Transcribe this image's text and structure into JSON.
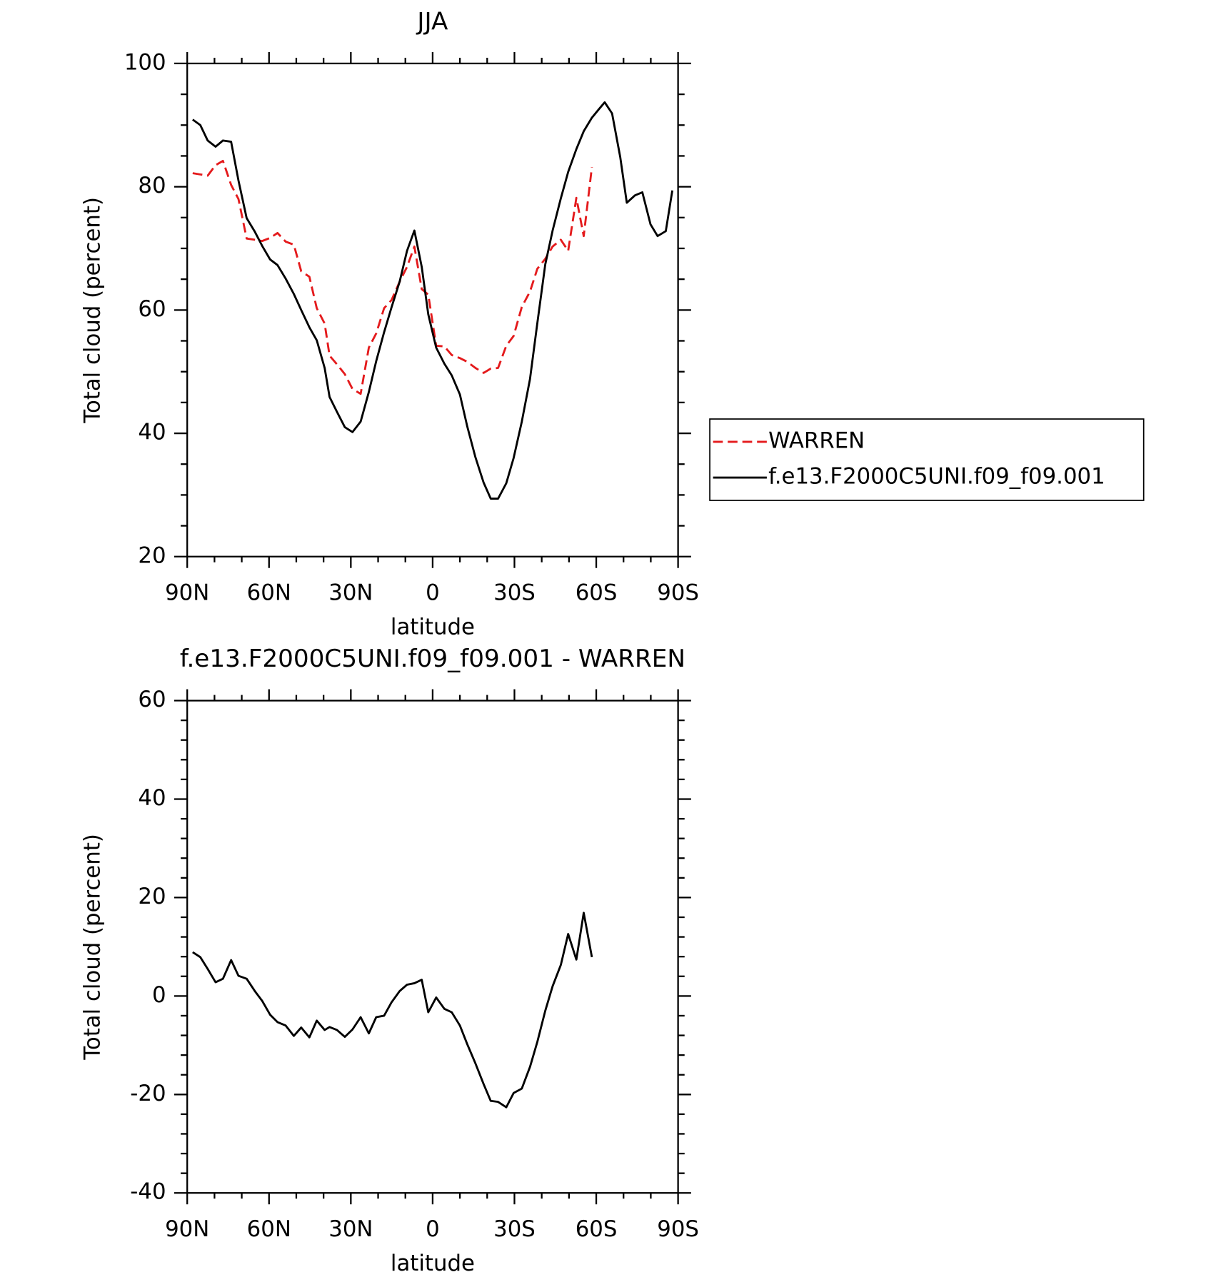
{
  "chart_data": [
    {
      "type": "line",
      "title": "JJA",
      "xlabel": "latitude",
      "ylabel": "Total cloud (percent)",
      "x": [
        88,
        85.2,
        82.5,
        79.6,
        76.9,
        73.9,
        71.2,
        68.2,
        65.2,
        62.5,
        59.6,
        56.9,
        53.9,
        50.9,
        48.2,
        45.2,
        42.5,
        39.6,
        37.8,
        35.1,
        32.2,
        29.4,
        26.4,
        23.4,
        20.7,
        17.8,
        15.1,
        12.1,
        9.4,
        6.7,
        4.0,
        1.6,
        -1.3,
        -4.3,
        -7.0,
        -10.0,
        -12.7,
        -15.7,
        -18.7,
        -21.3,
        -24.0,
        -27.0,
        -29.7,
        -32.7,
        -35.7,
        -38.4,
        -41.3,
        -44.0,
        -47.0,
        -49.7,
        -52.7,
        -55.4,
        -58.4,
        -61.0,
        -63.1,
        -65.8,
        -68.8,
        -71.2,
        -74.2,
        -76.9,
        -79.9,
        -82.5,
        -85.5,
        -87.9
      ],
      "series": [
        {
          "name": "WARREN",
          "color": "#e41a1c",
          "dashed": true,
          "values": [
            82.2,
            82.0,
            81.8,
            83.5,
            84.2,
            80.3,
            78.0,
            71.6,
            71.4,
            71.2,
            71.7,
            72.5,
            71.1,
            70.6,
            66.3,
            65.4,
            60.3,
            57.8,
            52.6,
            51.2,
            49.6,
            47.2,
            46.4,
            53.9,
            56.2,
            60.3,
            61.6,
            64.6,
            67.0,
            70.3,
            63.4,
            62.5,
            54.2,
            54.1,
            52.7,
            52.2,
            51.6,
            50.6,
            49.8,
            50.5,
            50.6,
            54.2,
            55.8,
            60.5,
            63.0,
            66.7,
            68.3,
            70.3,
            71.4,
            69.6,
            78.2,
            72.0,
            83.2,
            null,
            null,
            null,
            null,
            null,
            null,
            null,
            null,
            null,
            null,
            null
          ]
        },
        {
          "name": "f.e13.F2000C5UNI.f09_f09.001",
          "color": "#000000",
          "values": [
            90.9,
            90.0,
            87.5,
            86.5,
            87.5,
            87.3,
            81.0,
            74.9,
            72.7,
            70.4,
            68.2,
            67.3,
            65.1,
            62.6,
            60.0,
            57.2,
            55.1,
            50.6,
            45.9,
            43.5,
            41.0,
            40.2,
            41.9,
            46.7,
            51.7,
            56.4,
            60.4,
            64.6,
            69.6,
            72.9,
            67.0,
            59.3,
            53.9,
            51.3,
            49.4,
            46.3,
            41.1,
            36.1,
            32.0,
            29.4,
            29.4,
            31.9,
            36.0,
            41.9,
            48.8,
            57.9,
            67.4,
            72.9,
            78.1,
            82.4,
            86.1,
            89.0,
            91.2,
            92.6,
            93.7,
            91.9,
            84.8,
            77.4,
            78.6,
            79.1,
            73.9,
            72.0,
            72.8,
            79.4
          ]
        }
      ],
      "xlim": [
        90,
        -90
      ],
      "xticks": [
        {
          "value": 90,
          "label": "90N"
        },
        {
          "value": 60,
          "label": "60N"
        },
        {
          "value": 30,
          "label": "30N"
        },
        0,
        {
          "value": -30,
          "label": "30S"
        },
        {
          "value": -60,
          "label": "60S"
        },
        {
          "value": -90,
          "label": "90S"
        }
      ],
      "ylim": [
        20,
        100
      ],
      "yticks": [
        20,
        40,
        60,
        80,
        100
      ],
      "legend": "right"
    },
    {
      "type": "line",
      "title": "f.e13.F2000C5UNI.f09_f09.001 - WARREN",
      "xlabel": "latitude",
      "ylabel": "Total cloud (percent)",
      "x": [
        88,
        85.2,
        82.5,
        79.6,
        76.9,
        73.9,
        71.2,
        68.2,
        65.2,
        62.5,
        59.6,
        56.9,
        53.9,
        50.9,
        48.2,
        45.2,
        42.5,
        39.6,
        37.8,
        35.1,
        32.2,
        29.4,
        26.4,
        23.4,
        20.7,
        17.8,
        15.1,
        12.1,
        9.4,
        6.7,
        4.0,
        1.6,
        -1.3,
        -4.3,
        -7.0,
        -10.0,
        -12.7,
        -15.7,
        -18.7,
        -21.3,
        -24.0,
        -27.0,
        -29.7,
        -32.7,
        -35.7,
        -38.4,
        -41.3,
        -44.0,
        -47.0,
        -49.7,
        -52.7,
        -55.4,
        -58.4,
        -61.0,
        -63.1,
        -65.8,
        -68.8,
        -71.2,
        -74.2,
        -76.9,
        -79.9,
        -82.5,
        -85.5,
        -87.9
      ],
      "color": "#000000",
      "values": [
        8.9,
        7.9,
        5.5,
        2.8,
        3.5,
        7.3,
        4.1,
        3.5,
        1.0,
        -1.0,
        -3.8,
        -5.3,
        -6.0,
        -8.1,
        -6.4,
        -8.4,
        -5.0,
        -6.9,
        -6.3,
        -6.9,
        -8.3,
        -6.8,
        -4.3,
        -7.6,
        -4.3,
        -4.0,
        -1.3,
        1.0,
        2.3,
        2.6,
        3.3,
        -3.3,
        -0.3,
        -2.6,
        -3.3,
        -6.0,
        -9.8,
        -13.7,
        -17.9,
        -21.3,
        -21.5,
        -22.6,
        -19.7,
        -18.8,
        -14.4,
        -9.3,
        -3.0,
        2.0,
        6.3,
        12.6,
        7.4,
        16.9,
        7.9,
        null,
        null,
        null,
        null,
        null,
        null,
        null,
        null,
        null,
        null,
        null
      ],
      "xlim": [
        90,
        -90
      ],
      "xticks": [
        {
          "value": 90,
          "label": "90N"
        },
        {
          "value": 60,
          "label": "60N"
        },
        {
          "value": 30,
          "label": "30N"
        },
        0,
        {
          "value": -30,
          "label": "30S"
        },
        {
          "value": -60,
          "label": "60S"
        },
        {
          "value": -90,
          "label": "90S"
        }
      ],
      "ylim": [
        -40,
        60
      ],
      "yticks": [
        -40,
        -20,
        0,
        20,
        40,
        60
      ]
    }
  ]
}
